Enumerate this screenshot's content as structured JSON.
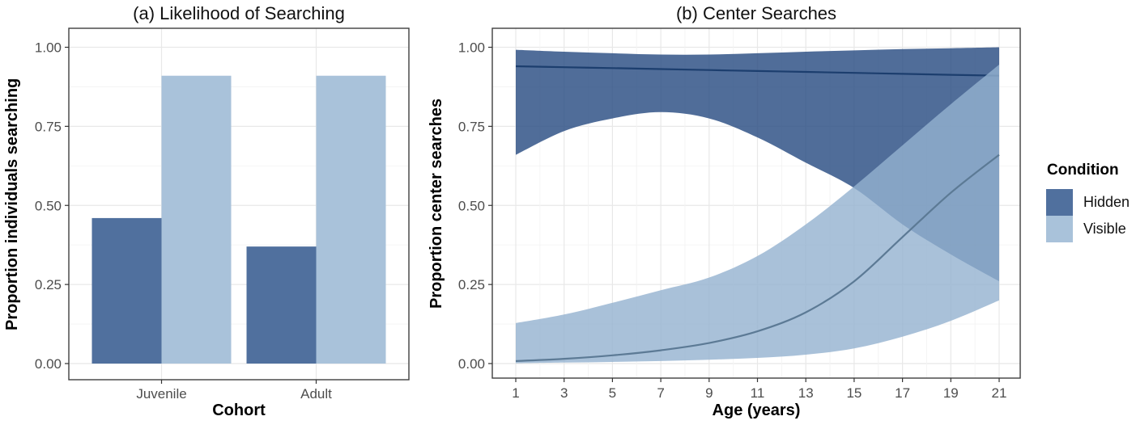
{
  "figure": {
    "panel_a": {
      "title": "(a) Likelihood of Searching",
      "x_axis": {
        "title": "Cohort",
        "tick_labels": [
          "Juvenile",
          "Adult"
        ]
      },
      "y_axis": {
        "title": "Proportion individuals searching",
        "tick_labels": [
          "0.00",
          "0.25",
          "0.50",
          "0.75",
          "1.00"
        ]
      }
    },
    "panel_b": {
      "title": "(b) Center Searches",
      "x_axis": {
        "title": "Age (years)",
        "tick_labels": [
          "1",
          "3",
          "5",
          "7",
          "9",
          "11",
          "13",
          "15",
          "17",
          "19",
          "21"
        ]
      },
      "y_axis": {
        "title": "Proportion center searches",
        "tick_labels": [
          "0.00",
          "0.25",
          "0.50",
          "0.75",
          "1.00"
        ]
      }
    },
    "legend": {
      "title": "Condition",
      "items": [
        {
          "label": "Hidden",
          "color": "#50709e"
        },
        {
          "label": "Visible",
          "color": "#a9c2da"
        }
      ]
    }
  },
  "colors": {
    "hidden_bar": "#50709e",
    "visible_bar": "#a9c2da",
    "hidden_ribbon": "#24497f",
    "visible_ribbon": "#93b2d0",
    "ribbon_opacity": 0.8,
    "hidden_line": "#1c3e6e",
    "visible_line": "#5c7a95",
    "grid_major": "#e8e8e8",
    "grid_minor": "#f3f3f3",
    "panel_border": "#3f3f3f",
    "tick_mark": "#333333",
    "tick_label": "#4d4d4d"
  },
  "chart_data": [
    {
      "type": "bar",
      "panel": "a",
      "title": "(a) Likelihood of Searching",
      "categories": [
        "Juvenile",
        "Adult"
      ],
      "series": [
        {
          "name": "Hidden",
          "color": "#50709e",
          "values": [
            0.46,
            0.37
          ]
        },
        {
          "name": "Visible",
          "color": "#a9c2da",
          "values": [
            0.91,
            0.91
          ]
        }
      ],
      "xlabel": "Cohort",
      "ylabel": "Proportion individuals searching",
      "ylim": [
        0,
        1
      ],
      "yticks": [
        0,
        0.25,
        0.5,
        0.75,
        1
      ],
      "yminor": [
        0.125,
        0.375,
        0.625,
        0.875
      ],
      "grid": true,
      "legend_position": "right"
    },
    {
      "type": "line",
      "panel": "b",
      "title": "(b) Center Searches",
      "x": [
        1,
        3,
        5,
        7,
        9,
        11,
        13,
        15,
        17,
        19,
        21
      ],
      "series": [
        {
          "name": "Hidden",
          "ribbon_color": "#24497f",
          "line_color": "#1c3e6e",
          "mean": [
            0.94,
            0.937,
            0.934,
            0.931,
            0.928,
            0.925,
            0.922,
            0.919,
            0.916,
            0.913,
            0.91
          ],
          "ci_lower": [
            0.66,
            0.735,
            0.775,
            0.795,
            0.775,
            0.715,
            0.635,
            0.555,
            0.44,
            0.345,
            0.26
          ],
          "ci_upper": [
            0.992,
            0.986,
            0.981,
            0.977,
            0.977,
            0.981,
            0.986,
            0.99,
            0.994,
            0.997,
            1.0
          ]
        },
        {
          "name": "Visible",
          "ribbon_color": "#93b2d0",
          "line_color": "#5c7a95",
          "mean": [
            0.008,
            0.015,
            0.026,
            0.042,
            0.065,
            0.102,
            0.162,
            0.26,
            0.4,
            0.54,
            0.66
          ],
          "ci_lower": [
            0.001,
            0.003,
            0.005,
            0.008,
            0.012,
            0.018,
            0.028,
            0.048,
            0.085,
            0.135,
            0.2
          ],
          "ci_upper": [
            0.128,
            0.155,
            0.192,
            0.232,
            0.272,
            0.34,
            0.44,
            0.56,
            0.69,
            0.82,
            0.945
          ]
        }
      ],
      "xlabel": "Age (years)",
      "ylabel": "Proportion center searches",
      "xlim": [
        1,
        21
      ],
      "ylim": [
        0,
        1
      ],
      "xticks": [
        1,
        3,
        5,
        7,
        9,
        11,
        13,
        15,
        17,
        19,
        21
      ],
      "xminor": [
        2,
        4,
        6,
        8,
        10,
        12,
        14,
        16,
        18,
        20
      ],
      "yticks": [
        0,
        0.25,
        0.5,
        0.75,
        1
      ],
      "yminor": [
        0.125,
        0.375,
        0.625,
        0.875
      ],
      "grid": true,
      "legend_title": "Condition",
      "legend_position": "right"
    }
  ]
}
